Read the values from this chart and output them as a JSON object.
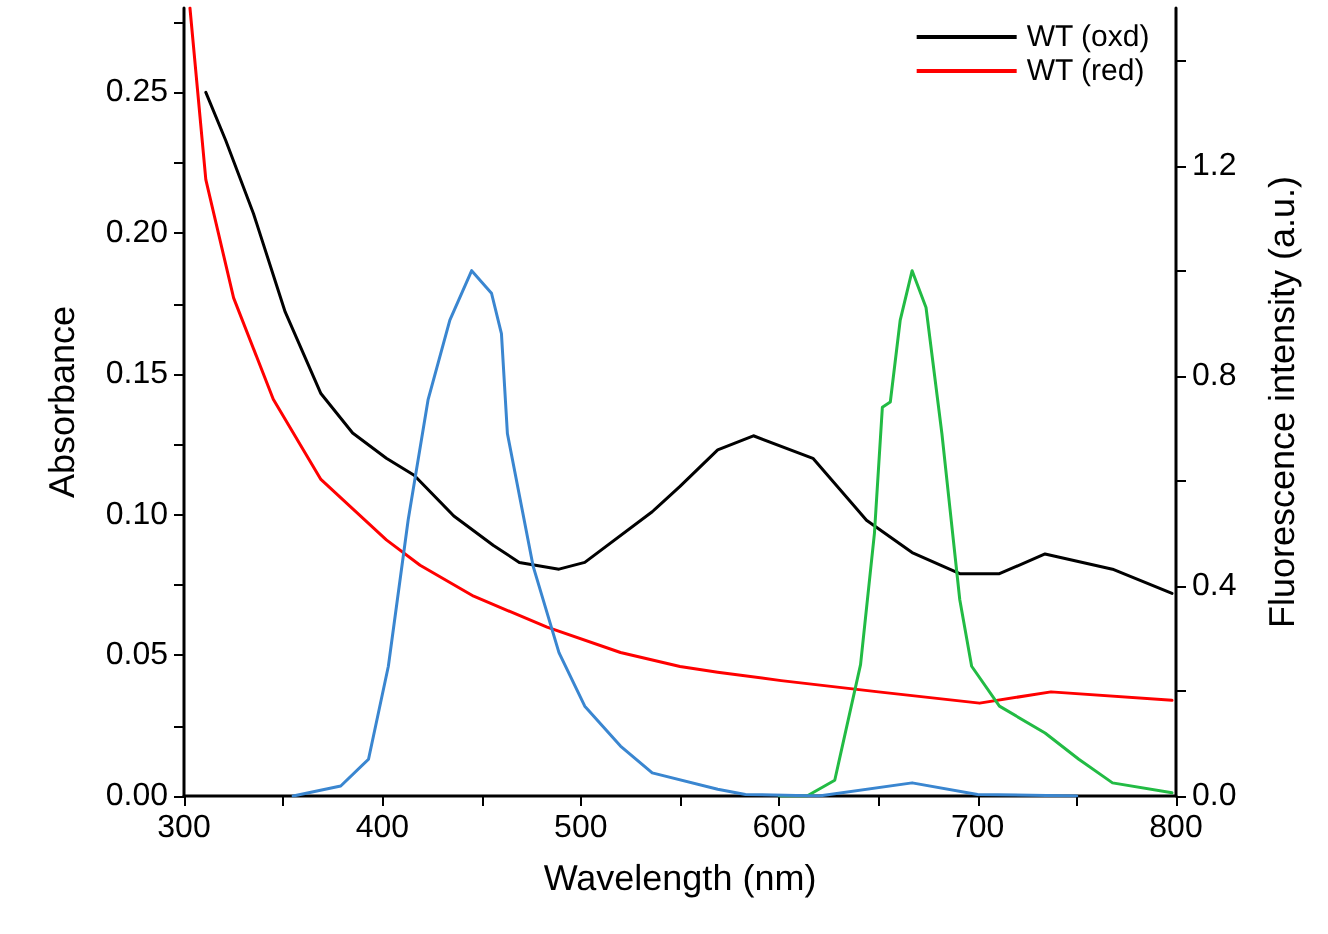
{
  "chart_data": {
    "type": "line",
    "xlabel": "Wavelength (nm)",
    "ylabel": "Absorbance",
    "y2label": "Fluorescence intensity (a.u.)",
    "xlim": [
      300,
      800
    ],
    "xticks": [
      300,
      {
        "value": 350,
        "label": null
      },
      400,
      {
        "value": 450,
        "label": null
      },
      500,
      {
        "value": 550,
        "label": null
      },
      600,
      {
        "value": 650,
        "label": null
      },
      700,
      {
        "value": 750,
        "label": null
      },
      800
    ],
    "ylim": [
      0,
      0.28
    ],
    "yticks": [
      {
        "value": 0,
        "label": "0.00"
      },
      {
        "value": 0.025,
        "label": null
      },
      {
        "value": 0.05,
        "label": "0.05"
      },
      {
        "value": 0.075,
        "label": null
      },
      {
        "value": 0.1,
        "label": "0.10"
      },
      {
        "value": 0.125,
        "label": null
      },
      {
        "value": 0.15,
        "label": "0.15"
      },
      {
        "value": 0.175,
        "label": null
      },
      {
        "value": 0.2,
        "label": "0.20"
      },
      {
        "value": 0.225,
        "label": null
      },
      {
        "value": 0.25,
        "label": "0.25"
      },
      {
        "value": 0.275,
        "label": null
      }
    ],
    "y2lim": [
      0,
      1.5
    ],
    "y2ticks": [
      {
        "value": 0,
        "label": "0.0"
      },
      {
        "value": 0.2,
        "label": null
      },
      {
        "value": 0.4,
        "label": "0.4"
      },
      {
        "value": 0.6,
        "label": null
      },
      {
        "value": 0.8,
        "label": "0.8"
      },
      {
        "value": 1.0,
        "label": null
      },
      {
        "value": 1.2,
        "label": "1.2"
      },
      {
        "value": 1.4,
        "label": null
      }
    ],
    "grid": false,
    "legend": "top right",
    "marker": "none",
    "line_style": "solid",
    "series": [
      {
        "name": "WT (oxd)",
        "color": "#000000",
        "x": [
          311,
          321,
          335,
          351,
          369,
          385,
          402,
          416,
          436,
          456,
          469,
          489,
          502,
          536,
          550,
          569,
          587,
          617,
          644,
          667,
          691,
          711,
          734,
          768,
          798
        ],
        "values": [
          0.25,
          0.233,
          0.207,
          0.172,
          0.143,
          0.129,
          0.12,
          0.114,
          0.0995,
          0.089,
          0.083,
          0.0806,
          0.083,
          0.101,
          0.11,
          0.123,
          0.128,
          0.12,
          0.098,
          0.0865,
          0.079,
          0.079,
          0.086,
          0.0806,
          0.072
        ]
      },
      {
        "name": "WT (red)",
        "color": "#ff0000",
        "x": [
          303,
          311,
          325,
          345,
          369,
          402,
          419,
          446,
          483,
          520,
          550,
          569,
          601,
          650,
          701,
          737,
          798
        ],
        "values": [
          0.28,
          0.219,
          0.177,
          0.141,
          0.1125,
          0.091,
          0.082,
          0.071,
          0.06,
          0.051,
          0.046,
          0.044,
          0.041,
          0.037,
          0.033,
          0.037,
          0.034
        ]
      },
      {
        "color": "#22bb44",
        "axis": "y2",
        "x": [
          600,
          614,
          628,
          641,
          648,
          652,
          656,
          661,
          667,
          674,
          682,
          691,
          697,
          711,
          734,
          751,
          768,
          798
        ],
        "values": [
          0,
          0,
          0.03,
          0.25,
          0.5,
          0.74,
          0.75,
          0.906,
          1.0,
          0.93,
          0.69,
          0.374,
          0.247,
          0.171,
          0.12,
          0.07,
          0.025,
          0.006
        ]
      },
      {
        "color": "#3a86d0",
        "axis": "y2",
        "x": [
          355,
          379,
          393,
          403,
          413,
          423,
          434,
          445,
          455,
          460,
          463,
          476,
          489,
          502,
          520,
          536,
          569,
          583,
          620,
          667,
          700,
          750
        ],
        "values": [
          0,
          0.019,
          0.07,
          0.247,
          0.526,
          0.754,
          0.906,
          1.0,
          0.957,
          0.88,
          0.69,
          0.437,
          0.273,
          0.171,
          0.095,
          0.044,
          0.013,
          0.003,
          0,
          0.025,
          0.003,
          0
        ]
      }
    ]
  }
}
